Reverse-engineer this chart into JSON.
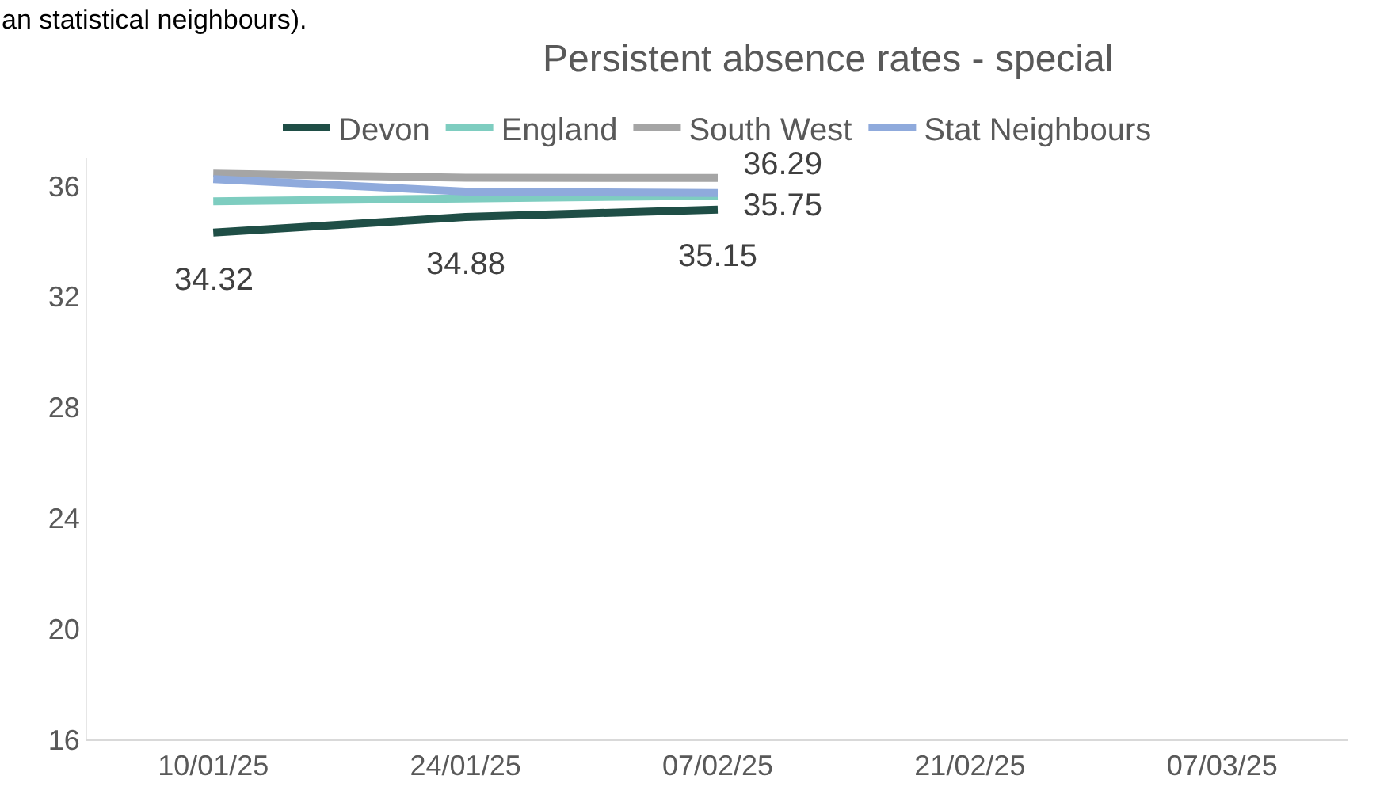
{
  "chart_data": {
    "type": "line",
    "title": "Persistent absence rates - special",
    "annotations": [
      "an statistical neighbours)."
    ],
    "categories": [
      "10/01/25",
      "24/01/25",
      "07/02/25",
      "21/02/25",
      "07/03/25"
    ],
    "series": [
      {
        "name": "Devon",
        "color": "#1f4e46",
        "values": [
          34.32,
          34.88,
          35.15,
          null,
          null
        ],
        "value_labels": [
          "34.32",
          "34.88",
          "35.15",
          null,
          null
        ]
      },
      {
        "name": "England",
        "color": "#7ecdc0",
        "values": [
          35.45,
          35.55,
          35.65,
          null,
          null
        ]
      },
      {
        "name": "South West",
        "color": "#a5a5a5",
        "values": [
          36.45,
          36.3,
          36.29,
          null,
          null
        ],
        "value_labels": [
          null,
          null,
          "36.29",
          null,
          null
        ]
      },
      {
        "name": "Stat Neighbours",
        "color": "#8faadc",
        "values": [
          36.25,
          35.8,
          35.75,
          null,
          null
        ],
        "value_labels": [
          null,
          null,
          "35.75",
          null,
          null
        ]
      }
    ],
    "ylim": [
      16,
      37
    ],
    "yticks": [
      16,
      20,
      24,
      28,
      32,
      36
    ],
    "grid": false,
    "legend": "top",
    "marker": "none",
    "line_style": "solid"
  }
}
